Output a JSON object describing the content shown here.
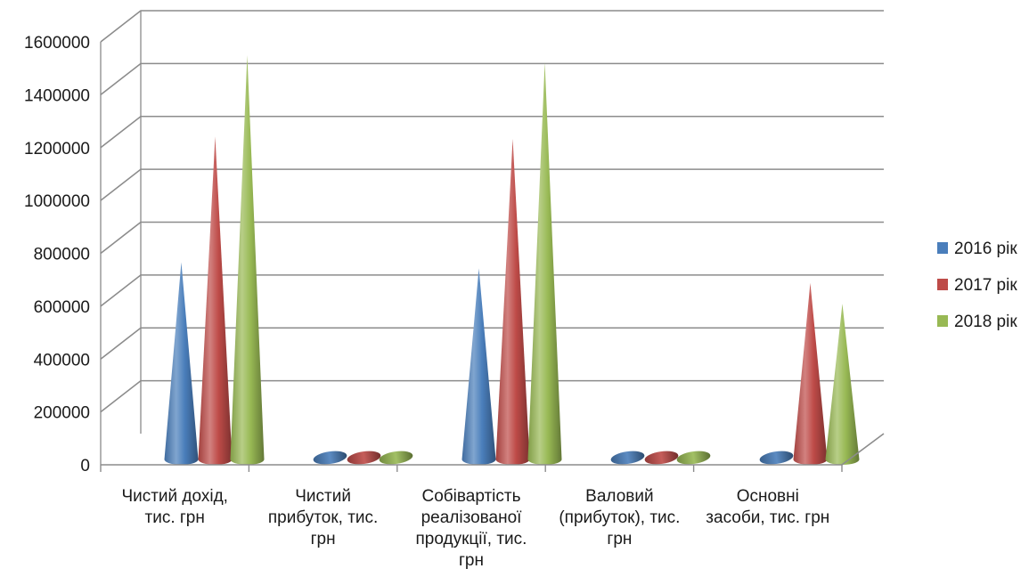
{
  "chart_data": {
    "type": "bar",
    "style": "3d-cone",
    "categories": [
      "Чистий дохід, тис. грн",
      "Чистий прибуток, тис. грн",
      "Собівартість реалізованої продукції, тис. грн",
      "Валовий (прибуток), тис. грн",
      "Основні засоби, тис. грн"
    ],
    "category_label_lines": [
      [
        "Чистий дохід,",
        "тис. грн"
      ],
      [
        "Чистий",
        "прибуток, тис.",
        "грн"
      ],
      [
        "Собівартість",
        "реалізованої",
        "продукції, тис.",
        "грн"
      ],
      [
        "Валовий",
        "(прибуток), тис.",
        "грн"
      ],
      [
        "Основні",
        "засоби, тис. грн"
      ]
    ],
    "series": [
      {
        "name": "2016 рік",
        "color": "#4a7ebb",
        "values": [
          746000,
          0,
          723000,
          0,
          0
        ]
      },
      {
        "name": "2017 рік",
        "color": "#be4b48",
        "values": [
          1221000,
          0,
          1213000,
          0,
          668000
        ]
      },
      {
        "name": "2018 рік",
        "color": "#98b954",
        "values": [
          1529000,
          0,
          1501000,
          0,
          589000
        ]
      }
    ],
    "ylim": [
      0,
      1600000
    ],
    "yticks": [
      "0",
      "200000",
      "400000",
      "600000",
      "800000",
      "1000000",
      "1200000",
      "1400000",
      "1600000"
    ],
    "xlabel": "",
    "ylabel": "",
    "title": "",
    "grid": true,
    "legend": "right"
  }
}
